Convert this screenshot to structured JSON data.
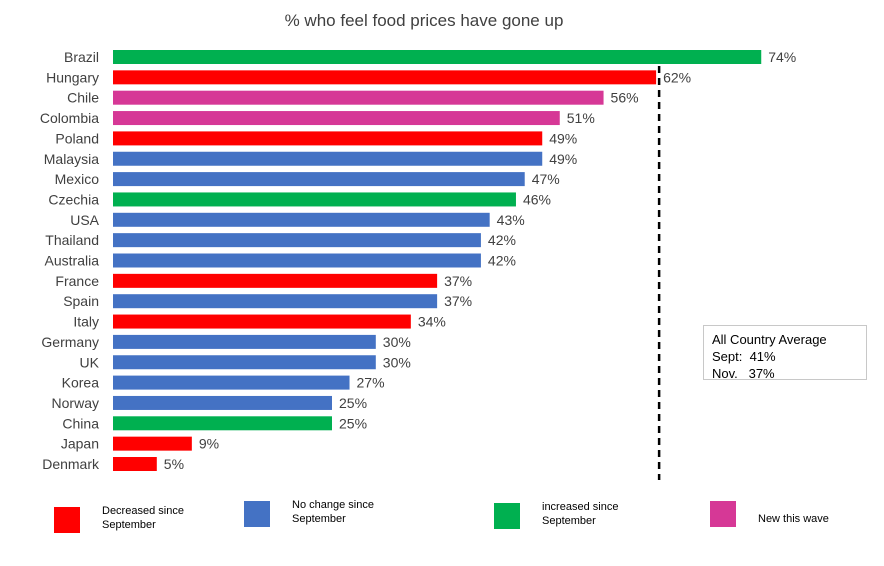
{
  "chart_data": {
    "type": "bar",
    "orientation": "horizontal",
    "title": "% who feel food prices have gone up",
    "categories": [
      "Brazil",
      "Hungary",
      "Chile",
      "Colombia",
      "Poland",
      "Malaysia",
      "Mexico",
      "Czechia",
      "USA",
      "Thailand",
      "Australia",
      "France",
      "Spain",
      "Italy",
      "Germany",
      "UK",
      "Korea",
      "Norway",
      "China",
      "Japan",
      "Denmark"
    ],
    "values": [
      74,
      62,
      56,
      51,
      49,
      49,
      47,
      46,
      43,
      42,
      42,
      37,
      37,
      34,
      30,
      30,
      27,
      25,
      25,
      9,
      5
    ],
    "data_labels": [
      "74%",
      "62%",
      "56%",
      "51%",
      "49%",
      "49%",
      "47%",
      "46%",
      "43%",
      "42%",
      "42%",
      "37%",
      "37%",
      "34%",
      "30%",
      "30%",
      "27%",
      "25%",
      "25%",
      "9%",
      "5%"
    ],
    "groups": [
      "increased",
      "decreased",
      "new",
      "new",
      "decreased",
      "nochange",
      "nochange",
      "increased",
      "nochange",
      "nochange",
      "nochange",
      "decreased",
      "nochange",
      "decreased",
      "nochange",
      "nochange",
      "nochange",
      "nochange",
      "increased",
      "decreased",
      "decreased"
    ],
    "xlim": [
      0,
      100
    ],
    "grid": false,
    "reference_line": {
      "value": 62,
      "style": "dashed"
    },
    "legend_placement": "bottom"
  },
  "colors": {
    "decreased": "#ff0000",
    "nochange": "#4472c4",
    "increased": "#00b050",
    "new": "#d63896"
  },
  "legend": [
    {
      "key": "decreased",
      "label": "Decreased since September"
    },
    {
      "key": "nochange",
      "label": "No change since September"
    },
    {
      "key": "increased",
      "label": "increased since September"
    },
    {
      "key": "new",
      "label": "New this wave"
    }
  ],
  "average_box": {
    "title": "All Country Average",
    "sept": "Sept:  41%",
    "nov": "Nov.   37%"
  }
}
